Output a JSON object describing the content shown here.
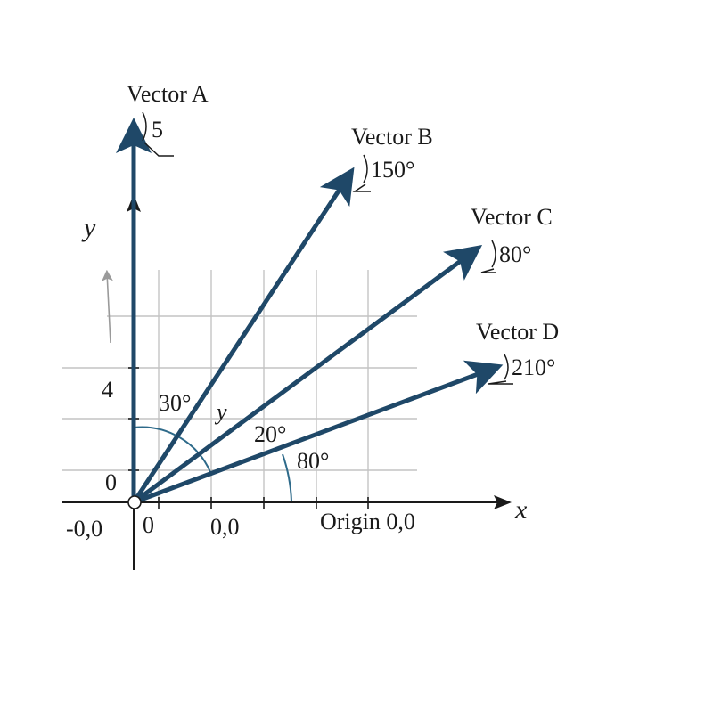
{
  "colors": {
    "vector": "#1f4868",
    "grid": "#c4c4c4",
    "axis": "#1a1a1a",
    "arc": "#2e6a8a",
    "faint_arrow": "#9a9a9a"
  },
  "axes": {
    "x_label": "x",
    "y_label": "y",
    "y_tick_top": "4",
    "y_tick_bottom": "0",
    "x_tick_left": "-0,0",
    "x_tick_zero": "0",
    "x_tick_mid": "0,0",
    "origin_label": "Origin 0,0"
  },
  "vectors": [
    {
      "name": "Vector A",
      "annotation": "5"
    },
    {
      "name": "Vector B",
      "annotation": "150°"
    },
    {
      "name": "Vector C",
      "annotation": "80°"
    },
    {
      "name": "Vector D",
      "annotation": "210°"
    }
  ],
  "angle_labels": {
    "a30": "30°",
    "y_mid": "y",
    "a20": "20°",
    "a80": "80°"
  }
}
